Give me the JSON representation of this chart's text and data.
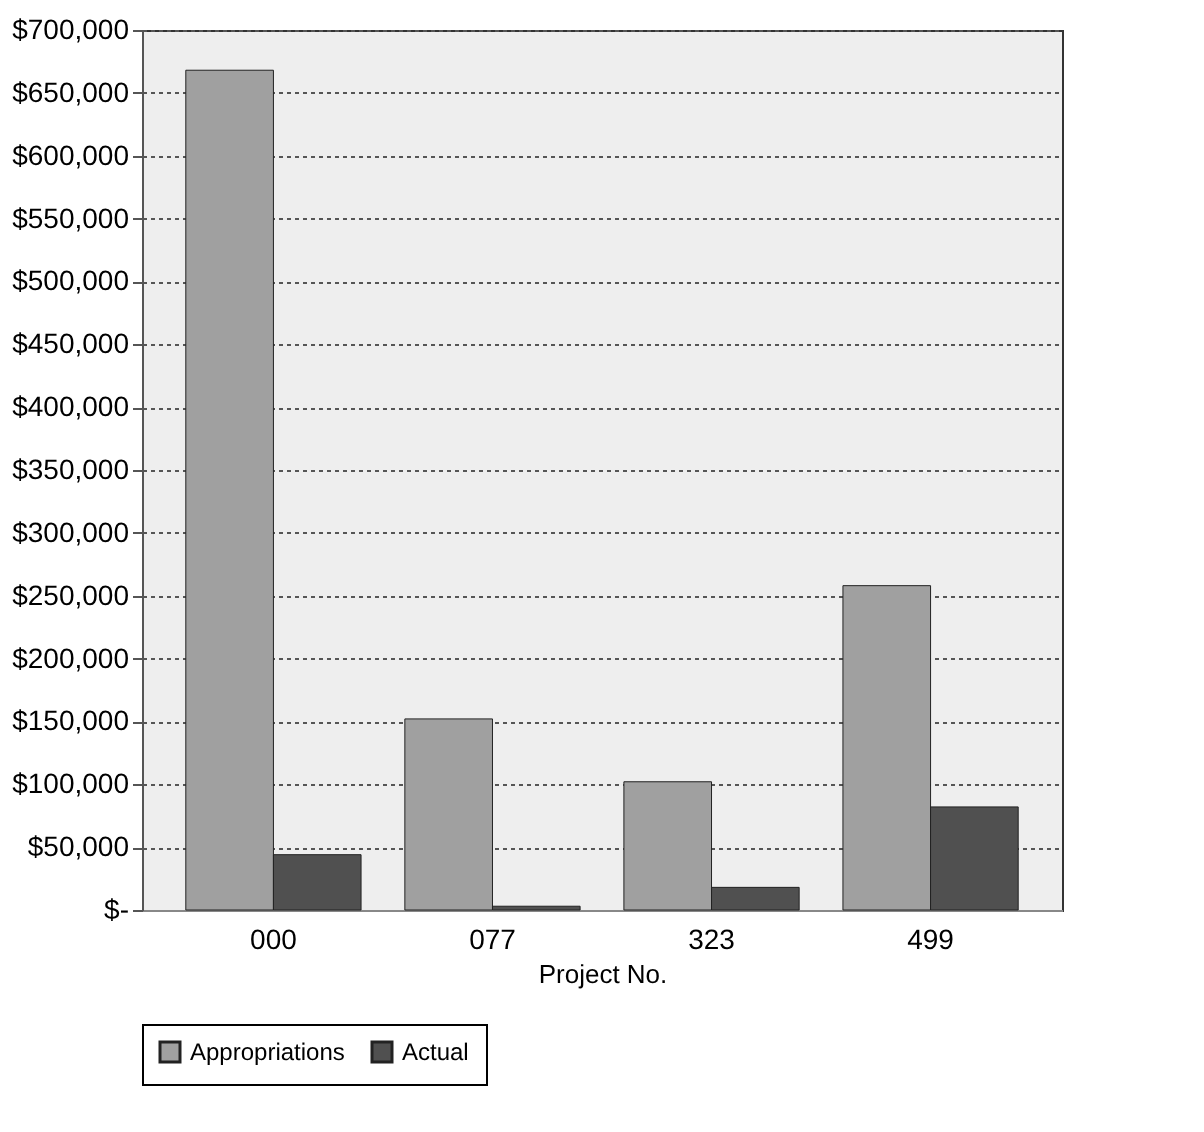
{
  "chart_data": {
    "type": "bar",
    "xlabel": "Project No.",
    "categories": [
      "000",
      "077",
      "323",
      "499"
    ],
    "series": [
      {
        "name": "Appropriations",
        "color": "#a0a0a0",
        "values": [
          668000,
          152000,
          102000,
          258000
        ]
      },
      {
        "name": "Actual",
        "color": "#505050",
        "values": [
          44000,
          3000,
          18000,
          82000
        ]
      }
    ],
    "ylim": [
      0,
      700000
    ],
    "yticks": [
      {
        "value": 0,
        "label": "$-"
      },
      {
        "value": 50000,
        "label": "$50,000"
      },
      {
        "value": 100000,
        "label": "$100,000"
      },
      {
        "value": 150000,
        "label": "$150,000"
      },
      {
        "value": 200000,
        "label": "$200,000"
      },
      {
        "value": 250000,
        "label": "$250,000"
      },
      {
        "value": 300000,
        "label": "$300,000"
      },
      {
        "value": 350000,
        "label": "$350,000"
      },
      {
        "value": 400000,
        "label": "$400,000"
      },
      {
        "value": 450000,
        "label": "$450,000"
      },
      {
        "value": 500000,
        "label": "$500,000"
      },
      {
        "value": 550000,
        "label": "$550,000"
      },
      {
        "value": 600000,
        "label": "$600,000"
      },
      {
        "value": 650000,
        "label": "$650,000"
      },
      {
        "value": 700000,
        "label": "$700,000"
      }
    ],
    "grid": "y",
    "legend": "bottom"
  }
}
